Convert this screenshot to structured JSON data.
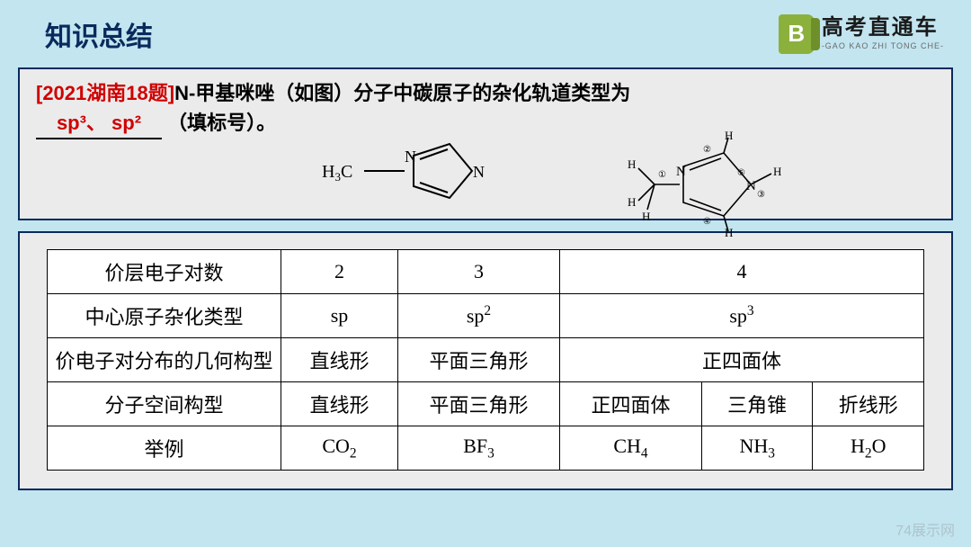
{
  "header": {
    "title": "知识总结",
    "brand_main": "高考直通车",
    "brand_sub": "-GAO KAO ZHI TONG CHE-",
    "brand_letter": "B"
  },
  "question": {
    "source": "[2021湖南18题]",
    "stem_a": "N-甲基咪唑（如图）分子中碳原子的杂化轨道类型为",
    "answer": "sp³、 sp²",
    "hint": "（填标号）。",
    "mol1": {
      "label_left": "H₃C",
      "label_right": "N",
      "label_rightN": "N"
    },
    "mol2": {
      "center": "N",
      "N2": "N",
      "H": "H",
      "circles": [
        "①",
        "②",
        "③",
        "④",
        "⑤"
      ]
    }
  },
  "table": {
    "rows": [
      {
        "head": "价层电子对数",
        "cells": [
          "2",
          "3",
          "4"
        ],
        "span_last": 3
      },
      {
        "head": "中心原子杂化类型",
        "cells": [
          "sp",
          "sp²",
          "sp³"
        ],
        "span_last": 3
      },
      {
        "head": "价电子对分布的几何构型",
        "cells": [
          "直线形",
          "平面三角形",
          "正四面体"
        ],
        "span_last": 3
      },
      {
        "head": "分子空间构型",
        "cells": [
          "直线形",
          "平面三角形",
          "正四面体",
          "三角锥",
          "折线形"
        ],
        "span_last": 1
      },
      {
        "head": "举例",
        "cells": [
          "CO₂",
          "BF₃",
          "CH₄",
          "NH₃",
          "H₂O"
        ],
        "span_last": 1
      }
    ],
    "col_widths": [
      "260",
      "110",
      "160",
      "140",
      "140",
      "140"
    ]
  },
  "watermark": "74展示网"
}
